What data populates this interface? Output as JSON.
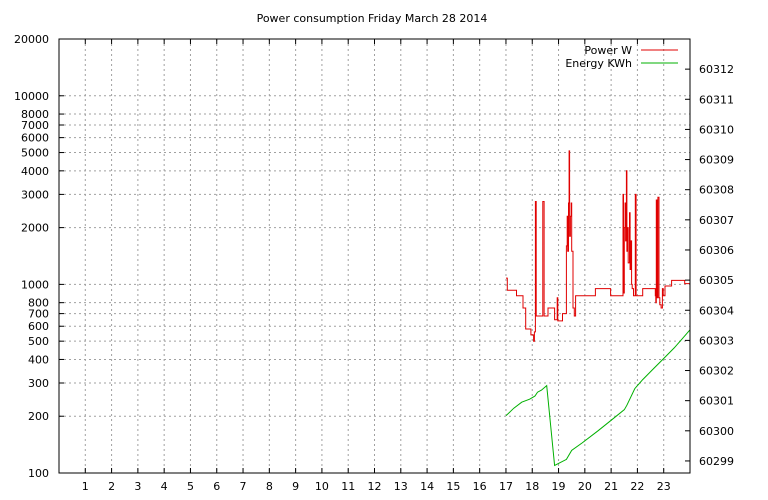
{
  "chart_data": {
    "type": "line",
    "title": "Power consumption Friday March 28 2014",
    "xlabel": "",
    "ylabel": "",
    "y2label": "",
    "xlim": [
      0,
      24
    ],
    "x_ticks": [
      1,
      2,
      3,
      4,
      5,
      6,
      7,
      8,
      9,
      10,
      11,
      12,
      13,
      14,
      15,
      16,
      17,
      18,
      19,
      20,
      21,
      22,
      23
    ],
    "y_scale": "log",
    "ylim": [
      100,
      20000
    ],
    "y_ticks": [
      100,
      200,
      300,
      400,
      500,
      600,
      700,
      800,
      1000,
      2000,
      3000,
      4000,
      5000,
      6000,
      7000,
      8000,
      10000,
      20000
    ],
    "y2lim": [
      60298.6,
      60313.0
    ],
    "y2_ticks": [
      60299,
      60300,
      60301,
      60302,
      60303,
      60304,
      60305,
      60306,
      60307,
      60308,
      60309,
      60310,
      60311,
      60312
    ],
    "grid": true,
    "legend_position": "top-right",
    "colors": {
      "power": "#e00000",
      "energy": "#00b000"
    },
    "series": [
      {
        "name": "Power W",
        "axis": "left",
        "step": true,
        "points": [
          [
            17.0,
            1080
          ],
          [
            17.05,
            930
          ],
          [
            17.4,
            870
          ],
          [
            17.65,
            750
          ],
          [
            17.75,
            580
          ],
          [
            17.95,
            540
          ],
          [
            18.05,
            500
          ],
          [
            18.08,
            560
          ],
          [
            18.12,
            2750
          ],
          [
            18.15,
            680
          ],
          [
            18.4,
            2750
          ],
          [
            18.45,
            680
          ],
          [
            18.6,
            750
          ],
          [
            18.85,
            650
          ],
          [
            18.95,
            850
          ],
          [
            18.97,
            640
          ],
          [
            19.05,
            640
          ],
          [
            19.15,
            700
          ],
          [
            19.3,
            1600
          ],
          [
            19.33,
            2300
          ],
          [
            19.35,
            1500
          ],
          [
            19.38,
            2700
          ],
          [
            19.4,
            5100
          ],
          [
            19.42,
            1800
          ],
          [
            19.45,
            2300
          ],
          [
            19.48,
            2700
          ],
          [
            19.5,
            1500
          ],
          [
            19.55,
            750
          ],
          [
            19.6,
            680
          ],
          [
            19.65,
            870
          ],
          [
            19.85,
            870
          ],
          [
            20.3,
            870
          ],
          [
            20.4,
            950
          ],
          [
            20.95,
            950
          ],
          [
            20.98,
            870
          ],
          [
            21.4,
            870
          ],
          [
            21.45,
            3000
          ],
          [
            21.47,
            900
          ],
          [
            21.5,
            2000
          ],
          [
            21.53,
            2700
          ],
          [
            21.55,
            1700
          ],
          [
            21.58,
            4000
          ],
          [
            21.6,
            1500
          ],
          [
            21.62,
            2000
          ],
          [
            21.65,
            1300
          ],
          [
            21.7,
            2400
          ],
          [
            21.72,
            1200
          ],
          [
            21.75,
            1700
          ],
          [
            21.78,
            1000
          ],
          [
            21.8,
            950
          ],
          [
            21.85,
            870
          ],
          [
            21.92,
            3000
          ],
          [
            21.95,
            870
          ],
          [
            22.2,
            950
          ],
          [
            22.65,
            950
          ],
          [
            22.68,
            870
          ],
          [
            22.7,
            800
          ],
          [
            22.72,
            2800
          ],
          [
            22.75,
            850
          ],
          [
            22.78,
            2900
          ],
          [
            22.82,
            850
          ],
          [
            22.85,
            780
          ],
          [
            22.9,
            750
          ],
          [
            22.95,
            950
          ],
          [
            22.98,
            870
          ],
          [
            23.05,
            980
          ],
          [
            23.3,
            1050
          ],
          [
            23.8,
            1010
          ],
          [
            24.0,
            1010
          ]
        ]
      },
      {
        "name": "Energy KWh",
        "axis": "right",
        "step": false,
        "points": [
          [
            17.0,
            60300.5
          ],
          [
            17.3,
            60300.75
          ],
          [
            17.6,
            60300.95
          ],
          [
            17.9,
            60301.05
          ],
          [
            18.1,
            60301.15
          ],
          [
            18.2,
            60301.28
          ],
          [
            18.35,
            60301.35
          ],
          [
            18.55,
            60301.5
          ],
          [
            18.85,
            60298.85
          ],
          [
            19.3,
            60299.05
          ],
          [
            19.5,
            60299.35
          ],
          [
            19.9,
            60299.6
          ],
          [
            20.5,
            60300.0
          ],
          [
            21.0,
            60300.35
          ],
          [
            21.5,
            60300.7
          ],
          [
            21.6,
            60300.85
          ],
          [
            21.9,
            60301.4
          ],
          [
            22.2,
            60301.7
          ],
          [
            22.6,
            60302.05
          ],
          [
            23.0,
            60302.4
          ],
          [
            23.4,
            60302.75
          ],
          [
            23.7,
            60303.05
          ],
          [
            24.0,
            60303.35
          ]
        ]
      }
    ]
  }
}
